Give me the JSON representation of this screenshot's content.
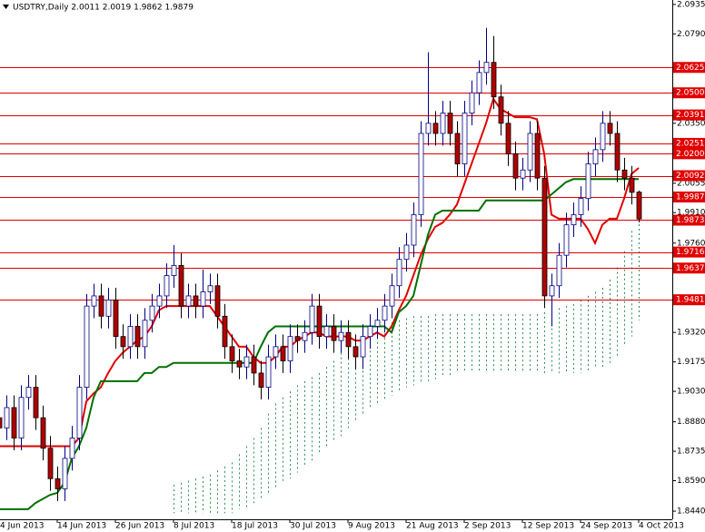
{
  "chart_data": {
    "type": "candlestick",
    "title": "USDTRY,Daily  2.0011 2.0019 1.9862 1.9879",
    "categories": [
      "4 Jun 2013",
      null,
      null,
      null,
      null,
      null,
      null,
      null,
      "14 Jun 2013",
      null,
      null,
      null,
      null,
      null,
      null,
      null,
      "26 Jun 2013",
      null,
      null,
      null,
      null,
      null,
      null,
      null,
      "8 Jul 2013",
      null,
      null,
      null,
      null,
      null,
      null,
      null,
      "18 Jul 2013",
      null,
      null,
      null,
      null,
      null,
      null,
      null,
      "30 Jul 2013",
      null,
      null,
      null,
      null,
      null,
      null,
      null,
      "9 Aug 2013",
      null,
      null,
      null,
      null,
      null,
      null,
      null,
      "21 Aug 2013",
      null,
      null,
      null,
      null,
      null,
      null,
      null,
      "2 Sep 2013",
      null,
      null,
      null,
      null,
      null,
      null,
      null,
      "12 Sep 2013",
      null,
      null,
      null,
      null,
      null,
      null,
      null,
      "24 Sep 2013",
      null,
      null,
      null,
      null,
      null,
      null,
      null,
      "4 Oct 2013"
    ],
    "open": [
      1.89,
      1.885,
      1.895,
      1.88,
      1.9,
      1.905,
      1.89,
      1.875,
      1.86,
      1.855,
      1.87,
      1.88,
      1.905,
      1.945,
      1.95,
      1.94,
      1.948,
      1.93,
      1.925,
      1.935,
      1.925,
      1.938,
      1.945,
      1.95,
      1.96,
      1.965,
      1.945,
      1.95,
      1.945,
      1.952,
      1.955,
      1.94,
      1.925,
      1.918,
      1.915,
      1.92,
      1.912,
      1.905,
      1.92,
      1.925,
      1.918,
      1.93,
      1.928,
      1.932,
      1.945,
      1.93,
      1.935,
      1.928,
      1.932,
      1.925,
      1.92,
      1.93,
      1.935,
      1.938,
      1.945,
      1.955,
      1.968,
      1.975,
      1.99,
      2.03,
      2.035,
      2.03,
      2.04,
      2.03,
      2.015,
      2.04,
      2.05,
      2.06,
      2.065,
      2.048,
      2.035,
      2.02,
      2.008,
      2.012,
      2.03,
      2.008,
      1.95,
      1.955,
      1.97,
      1.985,
      1.99,
      1.998,
      2.015,
      2.022,
      2.035,
      2.03,
      2.012,
      2.008,
      2.0011
    ],
    "high": [
      1.896,
      1.901,
      1.901,
      1.906,
      1.911,
      1.911,
      1.896,
      1.881,
      1.866,
      1.876,
      1.886,
      1.911,
      1.951,
      1.956,
      1.956,
      1.954,
      1.954,
      1.936,
      1.941,
      1.941,
      1.944,
      1.951,
      1.956,
      1.966,
      1.975,
      1.971,
      1.956,
      1.956,
      1.963,
      1.961,
      1.961,
      1.946,
      1.931,
      1.924,
      1.926,
      1.926,
      1.918,
      1.926,
      1.931,
      1.931,
      1.936,
      1.936,
      1.938,
      1.951,
      1.951,
      1.941,
      1.941,
      1.938,
      1.938,
      1.931,
      1.936,
      1.941,
      1.944,
      1.951,
      1.961,
      1.974,
      1.981,
      1.996,
      2.036,
      2.07,
      2.041,
      2.046,
      2.046,
      2.036,
      2.046,
      2.056,
      2.066,
      2.082,
      2.078,
      2.054,
      2.041,
      2.026,
      2.018,
      2.036,
      2.036,
      2.014,
      1.961,
      1.976,
      1.991,
      1.996,
      2.004,
      2.021,
      2.028,
      2.041,
      2.041,
      2.036,
      2.018,
      2.014,
      2.0019
    ],
    "low": [
      1.879,
      1.879,
      1.874,
      1.874,
      1.894,
      1.884,
      1.869,
      1.854,
      1.849,
      1.849,
      1.864,
      1.874,
      1.899,
      1.939,
      1.934,
      1.934,
      1.924,
      1.919,
      1.919,
      1.919,
      1.919,
      1.932,
      1.939,
      1.944,
      1.954,
      1.939,
      1.939,
      1.939,
      1.939,
      1.946,
      1.934,
      1.919,
      1.912,
      1.909,
      1.909,
      1.906,
      1.899,
      1.899,
      1.914,
      1.912,
      1.912,
      1.922,
      1.922,
      1.926,
      1.924,
      1.924,
      1.922,
      1.922,
      1.919,
      1.914,
      1.914,
      1.924,
      1.929,
      1.932,
      1.939,
      1.949,
      1.962,
      1.969,
      1.984,
      2.024,
      2.024,
      2.024,
      2.024,
      2.009,
      2.009,
      2.034,
      2.044,
      2.054,
      2.042,
      2.029,
      2.014,
      2.002,
      2.002,
      2.006,
      2.002,
      1.944,
      1.935,
      1.949,
      1.964,
      1.979,
      1.984,
      1.992,
      2.009,
      2.016,
      2.024,
      2.006,
      2.002,
      1.995,
      1.9862
    ],
    "close": [
      1.885,
      1.895,
      1.88,
      1.9,
      1.905,
      1.89,
      1.875,
      1.86,
      1.855,
      1.87,
      1.88,
      1.905,
      1.945,
      1.95,
      1.94,
      1.948,
      1.93,
      1.925,
      1.935,
      1.925,
      1.938,
      1.945,
      1.95,
      1.96,
      1.965,
      1.945,
      1.95,
      1.945,
      1.952,
      1.955,
      1.94,
      1.925,
      1.918,
      1.915,
      1.92,
      1.912,
      1.905,
      1.92,
      1.925,
      1.918,
      1.93,
      1.928,
      1.932,
      1.945,
      1.93,
      1.935,
      1.928,
      1.932,
      1.925,
      1.92,
      1.93,
      1.935,
      1.938,
      1.945,
      1.955,
      1.968,
      1.975,
      1.99,
      2.03,
      2.035,
      2.03,
      2.04,
      2.03,
      2.015,
      2.04,
      2.05,
      2.06,
      2.065,
      2.048,
      2.035,
      2.02,
      2.008,
      2.012,
      2.03,
      2.008,
      1.95,
      1.955,
      1.97,
      1.985,
      1.99,
      1.998,
      2.015,
      2.022,
      2.035,
      2.03,
      2.012,
      2.008,
      2.001,
      1.9879
    ],
    "bull_color": "#ffffff",
    "bear_color": "#b00000",
    "outline_color": "#000080",
    "lines": [
      {
        "color": "#e00000",
        "values": [
          1.876,
          1.876,
          1.876,
          1.876,
          1.876,
          1.876,
          1.876,
          1.876,
          1.876,
          1.876,
          1.876,
          1.88,
          1.898,
          1.902,
          1.905,
          1.912,
          1.918,
          1.922,
          1.925,
          1.928,
          1.93,
          1.935,
          1.943,
          1.945,
          1.945,
          1.945,
          1.945,
          1.945,
          1.945,
          1.945,
          1.94,
          1.935,
          1.93,
          1.925,
          1.925,
          1.92,
          1.917,
          1.917,
          1.92,
          1.925,
          1.925,
          1.928,
          1.93,
          1.932,
          1.932,
          1.93,
          1.93,
          1.93,
          1.93,
          1.928,
          1.928,
          1.93,
          1.932,
          1.93,
          1.935,
          1.943,
          1.95,
          1.96,
          1.97,
          1.978,
          1.984,
          1.986,
          1.99,
          1.995,
          2.005,
          2.015,
          2.025,
          2.035,
          2.047,
          2.042,
          2.04,
          2.038,
          2.038,
          2.038,
          2.037,
          2.02,
          1.99,
          1.988,
          1.988,
          1.988,
          1.988,
          1.983,
          1.976,
          1.985,
          1.988,
          1.988,
          1.998,
          2.01,
          2.013
        ]
      },
      {
        "color": "#007000",
        "values": [
          1.845,
          1.845,
          1.845,
          1.845,
          1.845,
          1.848,
          1.85,
          1.852,
          1.853,
          1.858,
          1.87,
          1.876,
          1.885,
          1.9,
          1.908,
          1.908,
          1.908,
          1.908,
          1.908,
          1.908,
          1.912,
          1.912,
          1.915,
          1.915,
          1.917,
          1.917,
          1.917,
          1.917,
          1.917,
          1.917,
          1.917,
          1.917,
          1.917,
          1.917,
          1.917,
          1.917,
          1.925,
          1.932,
          1.935,
          1.935,
          1.935,
          1.935,
          1.935,
          1.935,
          1.935,
          1.935,
          1.935,
          1.935,
          1.935,
          1.935,
          1.935,
          1.935,
          1.935,
          1.935,
          1.932,
          1.942,
          1.945,
          1.95,
          1.965,
          1.98,
          1.99,
          1.992,
          1.992,
          1.992,
          1.992,
          1.992,
          1.992,
          1.997,
          1.997,
          1.997,
          1.997,
          1.997,
          1.997,
          1.997,
          1.997,
          1.997,
          2.0,
          2.003,
          2.006,
          2.0075,
          2.0075,
          2.0075,
          2.0075,
          2.0075,
          2.0075,
          2.0075,
          2.0075,
          2.0075,
          2.0075
        ]
      }
    ],
    "cloud": {
      "color": "#2e8b57",
      "upper": [
        null,
        null,
        null,
        null,
        null,
        null,
        null,
        null,
        null,
        null,
        null,
        null,
        null,
        null,
        null,
        null,
        null,
        null,
        null,
        null,
        null,
        null,
        null,
        null,
        1.857,
        1.858,
        1.859,
        1.86,
        1.861,
        1.862,
        1.864,
        1.866,
        1.868,
        1.872,
        1.876,
        1.88,
        1.885,
        1.892,
        1.897,
        1.9,
        1.903,
        1.906,
        1.908,
        1.91,
        1.912,
        1.915,
        1.918,
        1.922,
        1.926,
        1.93,
        1.931,
        1.932,
        1.934,
        1.936,
        1.937,
        1.938,
        1.939,
        1.94,
        1.94,
        1.94,
        1.941,
        1.941,
        1.941,
        1.941,
        1.941,
        1.941,
        1.941,
        1.941,
        1.941,
        1.941,
        1.941,
        1.941,
        1.941,
        1.941,
        1.941,
        1.942,
        1.943,
        1.944,
        1.945,
        1.946,
        1.948,
        1.95,
        1.952,
        1.954,
        1.958,
        1.964,
        1.972,
        1.982,
        1.992
      ],
      "lower": [
        null,
        null,
        null,
        null,
        null,
        null,
        null,
        null,
        null,
        null,
        null,
        null,
        null,
        null,
        null,
        null,
        null,
        null,
        null,
        null,
        null,
        null,
        null,
        null,
        1.843,
        1.843,
        1.843,
        1.843,
        1.843,
        1.843,
        1.843,
        1.843,
        1.843,
        1.845,
        1.846,
        1.848,
        1.85,
        1.852,
        1.855,
        1.858,
        1.86,
        1.863,
        1.866,
        1.869,
        1.872,
        1.875,
        1.878,
        1.881,
        1.885,
        1.888,
        1.891,
        1.894,
        1.897,
        1.899,
        1.901,
        1.903,
        1.905,
        1.906,
        1.907,
        1.908,
        1.909,
        1.91,
        1.911,
        1.912,
        1.912,
        1.912,
        1.912,
        1.912,
        1.912,
        1.912,
        1.912,
        1.912,
        1.912,
        1.912,
        1.912,
        1.912,
        1.912,
        1.912,
        1.912,
        1.912,
        1.912,
        1.913,
        1.914,
        1.915,
        1.917,
        1.92,
        1.925,
        1.93,
        1.938
      ]
    },
    "levels": [
      {
        "value": 2.0625,
        "label": "2.0625"
      },
      {
        "value": 2.05,
        "label": "2.0500"
      },
      {
        "value": 2.0391,
        "label": "2.0391"
      },
      {
        "value": 2.0251,
        "label": "2.0251"
      },
      {
        "value": 2.02,
        "label": "2.0200"
      },
      {
        "value": 2.0092,
        "label": "2.0092"
      },
      {
        "value": 1.9987,
        "label": "1.9987"
      },
      {
        "value": 1.9873,
        "label": "1.9873"
      },
      {
        "value": 1.9716,
        "label": "1.9716"
      },
      {
        "value": 1.9637,
        "label": "1.9637"
      },
      {
        "value": 1.9481,
        "label": "1.9481"
      }
    ],
    "level_color": "#e00000",
    "ylim": [
      1.84,
      2.0957
    ],
    "yticks": [
      {
        "value": 2.0935,
        "label": "2.0935"
      },
      {
        "value": 2.079,
        "label": "2.0790"
      },
      {
        "value": 2.035,
        "label": "2.0350"
      },
      {
        "value": 2.0055,
        "label": "2.0055"
      },
      {
        "value": 1.991,
        "label": "1.9910"
      },
      {
        "value": 1.976,
        "label": "1.9760"
      },
      {
        "value": 1.932,
        "label": "1.9320"
      },
      {
        "value": 1.9175,
        "label": "1.9175"
      },
      {
        "value": 1.903,
        "label": "1.9030"
      },
      {
        "value": 1.888,
        "label": "1.8880"
      },
      {
        "value": 1.8735,
        "label": "1.8735"
      },
      {
        "value": 1.859,
        "label": "1.8590"
      },
      {
        "value": 1.844,
        "label": "1.8440"
      }
    ],
    "grid": false
  }
}
